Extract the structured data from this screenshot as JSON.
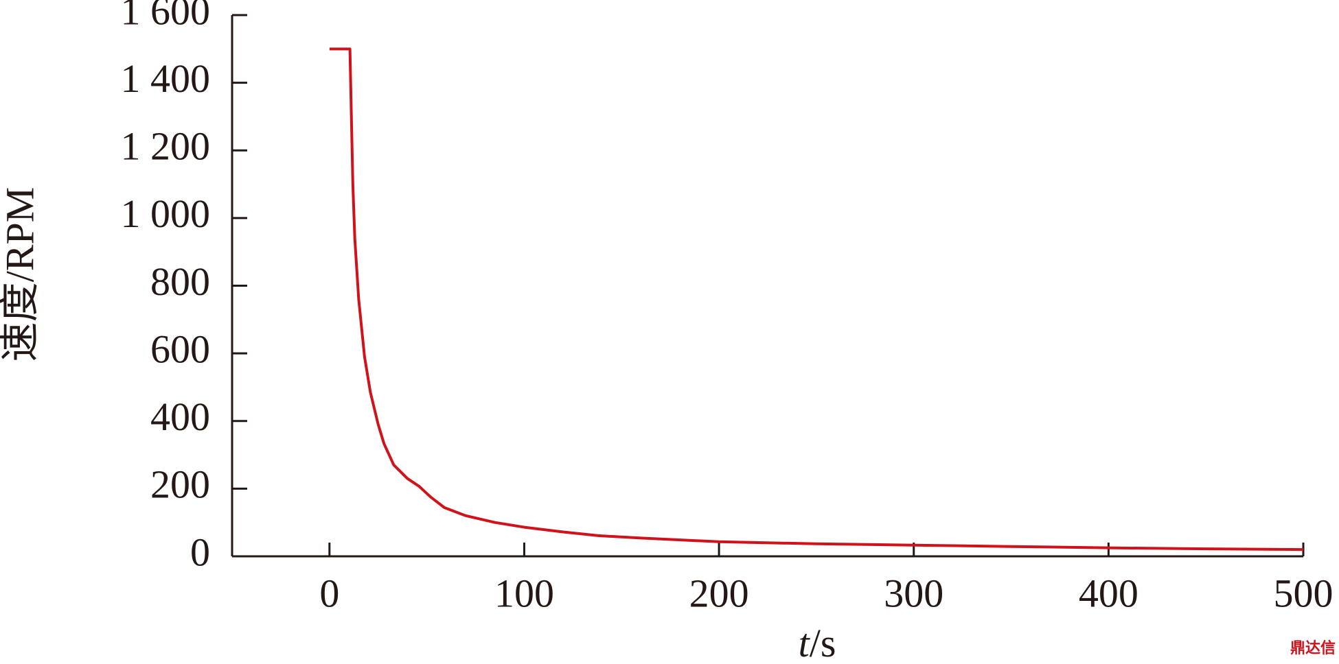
{
  "chart_data": {
    "type": "line",
    "x_label": "t/s",
    "y_label": "速度/RPM",
    "watermark": "鼎达信",
    "x": [
      0,
      10,
      10.5,
      12,
      13,
      15,
      18,
      21,
      25,
      28,
      33,
      40,
      46,
      52,
      59,
      70,
      85,
      100,
      120,
      138,
      160,
      200,
      250,
      300,
      350,
      400,
      450,
      500
    ],
    "series": [
      {
        "name": "速度",
        "color": "#d0121b",
        "values": [
          1500,
          1500,
          1500,
          1100,
          940,
          760,
          590,
          485,
          390,
          333,
          270,
          230,
          207,
          175,
          144,
          120,
          100,
          86,
          72,
          61,
          54,
          43,
          37,
          33,
          29,
          25,
          22,
          20
        ]
      }
    ],
    "xlim": [
      -50,
      500
    ],
    "ylim": [
      0,
      1600
    ],
    "xticks": [
      0,
      100,
      200,
      300,
      400,
      500
    ],
    "yticks": [
      0,
      200,
      400,
      600,
      800,
      {
        "value": 1000,
        "label": "1 000"
      },
      {
        "value": 1200,
        "label": "1 200"
      },
      {
        "value": 1400,
        "label": "1 400"
      },
      {
        "value": 1600,
        "label": "1 600"
      }
    ]
  }
}
